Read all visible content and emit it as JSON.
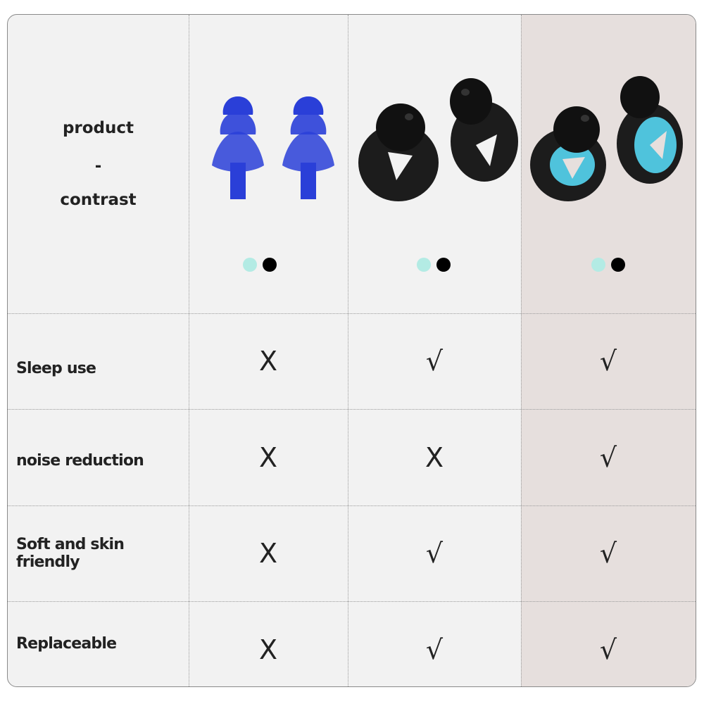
{
  "header": {
    "line1": "product",
    "line2": "-",
    "line3": "contrast"
  },
  "products": [
    {
      "name": "blue-tree-earplugs",
      "swatches": [
        "#b3ebe4",
        "#000000"
      ]
    },
    {
      "name": "black-loop-earplugs",
      "swatches": [
        "#b3ebe4",
        "#000000"
      ]
    },
    {
      "name": "black-cyan-loop-earplugs",
      "swatches": [
        "#b3ebe4",
        "#000000"
      ],
      "highlighted": true
    }
  ],
  "rows": [
    {
      "label": "Sleep use",
      "values": [
        "X",
        "√",
        "√"
      ]
    },
    {
      "label": "noise reduction",
      "values": [
        "X",
        "X",
        "√"
      ]
    },
    {
      "label": "Soft and skin friendly",
      "values": [
        "X",
        "√",
        "√"
      ]
    },
    {
      "label": "Replaceable",
      "values": [
        "X",
        "√",
        "√"
      ]
    }
  ],
  "colors": {
    "background": "#f2f2f2",
    "highlight": "#e6dfdd",
    "blue_plug": "#2a3fd8",
    "cyan_accent": "#4fc3dc"
  }
}
